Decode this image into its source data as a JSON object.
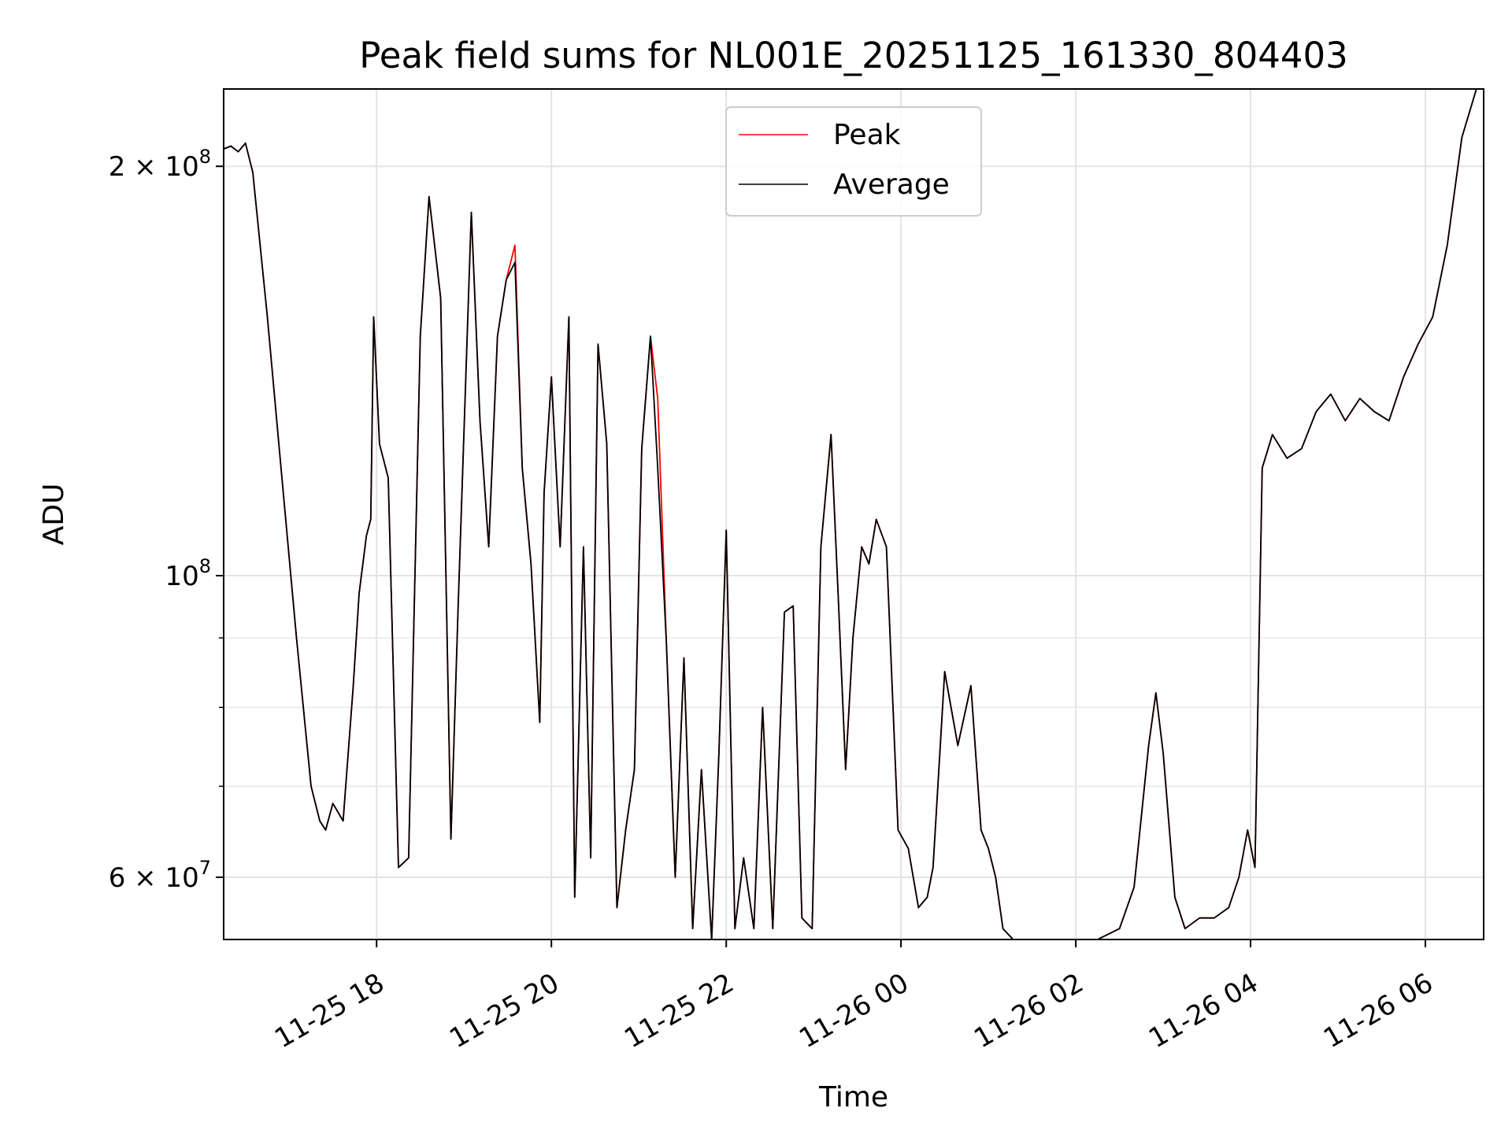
{
  "chart_data": {
    "type": "line",
    "title": "Peak field sums for NL001E_20251125_161330_804403",
    "xlabel": "Time",
    "ylabel": "ADU",
    "yscale": "log",
    "grid": true,
    "legend_position": "top-center",
    "xlim": [
      "2025-11-25 16:15",
      "2025-11-26 06:40"
    ],
    "ylim": [
      54000000,
      228000000
    ],
    "x_ticks": [
      "2025-11-25 18:00",
      "2025-11-25 20:00",
      "2025-11-25 22:00",
      "2025-11-26 00:00",
      "2025-11-26 02:00",
      "2025-11-26 04:00",
      "2025-11-26 06:00"
    ],
    "x_tick_labels": [
      "11-25 18",
      "11-25 20",
      "11-25 22",
      "11-26 00",
      "11-26 02",
      "11-26 04",
      "11-26 06"
    ],
    "y_ticks": [
      {
        "value": 60000000,
        "mantissa": "6",
        "exponent": "7"
      },
      {
        "value": 100000000,
        "mantissa": "",
        "exponent": "8"
      },
      {
        "value": 200000000,
        "mantissa": "2",
        "exponent": "8"
      }
    ],
    "y_minor_ticks": [
      70000000,
      80000000,
      90000000
    ],
    "series": [
      {
        "name": "Peak",
        "color": "#ff0000",
        "x": [
          "2025-11-25 16:15",
          "2025-11-25 16:20",
          "2025-11-25 16:25",
          "2025-11-25 16:30",
          "2025-11-25 16:35",
          "2025-11-25 16:45",
          "2025-11-25 16:55",
          "2025-11-25 17:05",
          "2025-11-25 17:15",
          "2025-11-25 17:21",
          "2025-11-25 17:25",
          "2025-11-25 17:30",
          "2025-11-25 17:37",
          "2025-11-25 17:44",
          "2025-11-25 17:48",
          "2025-11-25 17:53",
          "2025-11-25 17:56",
          "2025-11-25 17:58",
          "2025-11-25 18:02",
          "2025-11-25 18:08",
          "2025-11-25 18:15",
          "2025-11-25 18:22",
          "2025-11-25 18:30",
          "2025-11-25 18:36",
          "2025-11-25 18:44",
          "2025-11-25 18:51",
          "2025-11-25 18:56",
          "2025-11-25 19:05",
          "2025-11-25 19:11",
          "2025-11-25 19:17",
          "2025-11-25 19:23",
          "2025-11-25 19:29",
          "2025-11-25 19:35",
          "2025-11-25 19:40",
          "2025-11-25 19:46",
          "2025-11-25 19:52",
          "2025-11-25 19:55",
          "2025-11-25 20:00",
          "2025-11-25 20:06",
          "2025-11-25 20:12",
          "2025-11-25 20:16",
          "2025-11-25 20:22",
          "2025-11-25 20:27",
          "2025-11-25 20:32",
          "2025-11-25 20:38",
          "2025-11-25 20:45",
          "2025-11-25 20:51",
          "2025-11-25 20:57",
          "2025-11-25 21:02",
          "2025-11-25 21:08",
          "2025-11-25 21:13",
          "2025-11-25 21:19",
          "2025-11-25 21:25",
          "2025-11-25 21:31",
          "2025-11-25 21:37",
          "2025-11-25 21:43",
          "2025-11-25 21:50",
          "2025-11-25 21:55",
          "2025-11-25 22:00",
          "2025-11-25 22:06",
          "2025-11-25 22:12",
          "2025-11-25 22:19",
          "2025-11-25 22:25",
          "2025-11-25 22:32",
          "2025-11-25 22:40",
          "2025-11-25 22:46",
          "2025-11-25 22:52",
          "2025-11-25 22:59",
          "2025-11-25 23:05",
          "2025-11-25 23:12",
          "2025-11-25 23:17",
          "2025-11-25 23:22",
          "2025-11-25 23:27",
          "2025-11-25 23:33",
          "2025-11-25 23:38",
          "2025-11-25 23:43",
          "2025-11-25 23:50",
          "2025-11-25 23:58",
          "2025-11-26 00:05",
          "2025-11-26 00:12",
          "2025-11-26 00:18",
          "2025-11-26 00:22",
          "2025-11-26 00:30",
          "2025-11-26 00:39",
          "2025-11-26 00:48",
          "2025-11-26 00:55",
          "2025-11-26 01:00",
          "2025-11-26 01:05",
          "2025-11-26 01:10",
          "2025-11-26 01:17",
          "2025-11-26 01:25",
          "2025-11-26 01:35",
          "2025-11-26 01:45",
          "2025-11-26 02:00",
          "2025-11-26 02:15",
          "2025-11-26 02:30",
          "2025-11-26 02:40",
          "2025-11-26 02:50",
          "2025-11-26 02:55",
          "2025-11-26 03:00",
          "2025-11-26 03:08",
          "2025-11-26 03:15",
          "2025-11-26 03:25",
          "2025-11-26 03:35",
          "2025-11-26 03:45",
          "2025-11-26 03:52",
          "2025-11-26 03:58",
          "2025-11-26 04:03",
          "2025-11-26 04:08",
          "2025-11-26 04:15",
          "2025-11-26 04:25",
          "2025-11-26 04:35",
          "2025-11-26 04:45",
          "2025-11-26 04:55",
          "2025-11-26 05:05",
          "2025-11-26 05:15",
          "2025-11-26 05:25",
          "2025-11-26 05:35",
          "2025-11-26 05:45",
          "2025-11-26 05:55",
          "2025-11-26 06:05",
          "2025-11-26 06:15",
          "2025-11-26 06:25",
          "2025-11-26 06:35"
        ],
        "y": [
          206000000,
          207000000,
          205000000,
          208000000,
          198000000,
          155000000,
          118000000,
          90000000,
          70000000,
          66000000,
          65000000,
          68000000,
          66000000,
          83000000,
          97000000,
          107000000,
          110000000,
          155000000,
          125000000,
          118000000,
          61000000,
          62000000,
          150000000,
          190000000,
          160000000,
          64000000,
          95000000,
          185000000,
          130000000,
          105000000,
          150000000,
          165000000,
          175000000,
          120000000,
          102000000,
          78000000,
          115000000,
          140000000,
          105000000,
          155000000,
          58000000,
          105000000,
          62000000,
          148000000,
          125000000,
          57000000,
          65000000,
          72000000,
          124000000,
          150000000,
          135000000,
          89000000,
          60000000,
          87000000,
          55000000,
          72000000,
          54000000,
          74000000,
          108000000,
          55000000,
          62000000,
          55000000,
          80000000,
          55000000,
          94000000,
          95000000,
          56000000,
          55000000,
          105000000,
          127000000,
          96000000,
          72000000,
          90000000,
          105000000,
          102000000,
          110000000,
          105000000,
          65000000,
          63000000,
          57000000,
          58000000,
          61000000,
          85000000,
          75000000,
          83000000,
          65000000,
          63000000,
          60000000,
          55000000,
          54000000,
          54000000,
          54000000,
          54000000,
          54000000,
          54000000,
          55000000,
          59000000,
          75000000,
          82000000,
          74000000,
          58000000,
          55000000,
          56000000,
          56000000,
          57000000,
          60000000,
          65000000,
          61000000,
          120000000,
          127000000,
          122000000,
          124000000,
          132000000,
          136000000,
          130000000,
          135000000,
          132000000,
          130000000,
          140000000,
          148000000,
          155000000,
          175000000,
          210000000,
          228000000
        ]
      },
      {
        "name": "Average",
        "color": "#000000",
        "x": [
          "2025-11-25 16:15",
          "2025-11-25 16:20",
          "2025-11-25 16:25",
          "2025-11-25 16:30",
          "2025-11-25 16:35",
          "2025-11-25 16:45",
          "2025-11-25 16:55",
          "2025-11-25 17:05",
          "2025-11-25 17:15",
          "2025-11-25 17:21",
          "2025-11-25 17:25",
          "2025-11-25 17:30",
          "2025-11-25 17:37",
          "2025-11-25 17:44",
          "2025-11-25 17:48",
          "2025-11-25 17:53",
          "2025-11-25 17:56",
          "2025-11-25 17:58",
          "2025-11-25 18:02",
          "2025-11-25 18:08",
          "2025-11-25 18:15",
          "2025-11-25 18:22",
          "2025-11-25 18:30",
          "2025-11-25 18:36",
          "2025-11-25 18:44",
          "2025-11-25 18:51",
          "2025-11-25 18:56",
          "2025-11-25 19:05",
          "2025-11-25 19:11",
          "2025-11-25 19:17",
          "2025-11-25 19:23",
          "2025-11-25 19:29",
          "2025-11-25 19:35",
          "2025-11-25 19:40",
          "2025-11-25 19:46",
          "2025-11-25 19:52",
          "2025-11-25 19:55",
          "2025-11-25 20:00",
          "2025-11-25 20:06",
          "2025-11-25 20:12",
          "2025-11-25 20:16",
          "2025-11-25 20:22",
          "2025-11-25 20:27",
          "2025-11-25 20:32",
          "2025-11-25 20:38",
          "2025-11-25 20:45",
          "2025-11-25 20:51",
          "2025-11-25 20:57",
          "2025-11-25 21:02",
          "2025-11-25 21:08",
          "2025-11-25 21:13",
          "2025-11-25 21:19",
          "2025-11-25 21:25",
          "2025-11-25 21:31",
          "2025-11-25 21:37",
          "2025-11-25 21:43",
          "2025-11-25 21:50",
          "2025-11-25 21:55",
          "2025-11-25 22:00",
          "2025-11-25 22:06",
          "2025-11-25 22:12",
          "2025-11-25 22:19",
          "2025-11-25 22:25",
          "2025-11-25 22:32",
          "2025-11-25 22:40",
          "2025-11-25 22:46",
          "2025-11-25 22:52",
          "2025-11-25 22:59",
          "2025-11-25 23:05",
          "2025-11-25 23:12",
          "2025-11-25 23:17",
          "2025-11-25 23:22",
          "2025-11-25 23:27",
          "2025-11-25 23:33",
          "2025-11-25 23:38",
          "2025-11-25 23:43",
          "2025-11-25 23:50",
          "2025-11-25 23:58",
          "2025-11-26 00:05",
          "2025-11-26 00:12",
          "2025-11-26 00:18",
          "2025-11-26 00:22",
          "2025-11-26 00:30",
          "2025-11-26 00:39",
          "2025-11-26 00:48",
          "2025-11-26 00:55",
          "2025-11-26 01:00",
          "2025-11-26 01:05",
          "2025-11-26 01:10",
          "2025-11-26 01:17",
          "2025-11-26 01:25",
          "2025-11-26 01:35",
          "2025-11-26 01:45",
          "2025-11-26 02:00",
          "2025-11-26 02:15",
          "2025-11-26 02:30",
          "2025-11-26 02:40",
          "2025-11-26 02:50",
          "2025-11-26 02:55",
          "2025-11-26 03:00",
          "2025-11-26 03:08",
          "2025-11-26 03:15",
          "2025-11-26 03:25",
          "2025-11-26 03:35",
          "2025-11-26 03:45",
          "2025-11-26 03:52",
          "2025-11-26 03:58",
          "2025-11-26 04:03",
          "2025-11-26 04:08",
          "2025-11-26 04:15",
          "2025-11-26 04:25",
          "2025-11-26 04:35",
          "2025-11-26 04:45",
          "2025-11-26 04:55",
          "2025-11-26 05:05",
          "2025-11-26 05:15",
          "2025-11-26 05:25",
          "2025-11-26 05:35",
          "2025-11-26 05:45",
          "2025-11-26 05:55",
          "2025-11-26 06:05",
          "2025-11-26 06:15",
          "2025-11-26 06:25",
          "2025-11-26 06:35"
        ],
        "y": [
          206000000,
          207000000,
          205000000,
          208000000,
          198000000,
          155000000,
          118000000,
          90000000,
          70000000,
          66000000,
          65000000,
          68000000,
          66000000,
          83000000,
          97000000,
          107000000,
          110000000,
          155000000,
          125000000,
          118000000,
          61000000,
          62000000,
          150000000,
          190000000,
          160000000,
          64000000,
          95000000,
          185000000,
          130000000,
          105000000,
          150000000,
          165000000,
          170000000,
          120000000,
          102000000,
          78000000,
          115000000,
          140000000,
          105000000,
          155000000,
          58000000,
          105000000,
          62000000,
          148000000,
          125000000,
          57000000,
          65000000,
          72000000,
          124000000,
          150000000,
          120000000,
          89000000,
          60000000,
          87000000,
          55000000,
          72000000,
          54000000,
          74000000,
          108000000,
          55000000,
          62000000,
          55000000,
          80000000,
          55000000,
          94000000,
          95000000,
          56000000,
          55000000,
          105000000,
          127000000,
          96000000,
          72000000,
          90000000,
          105000000,
          102000000,
          110000000,
          105000000,
          65000000,
          63000000,
          57000000,
          58000000,
          61000000,
          85000000,
          75000000,
          83000000,
          65000000,
          63000000,
          60000000,
          55000000,
          54000000,
          54000000,
          54000000,
          54000000,
          54000000,
          54000000,
          55000000,
          59000000,
          75000000,
          82000000,
          74000000,
          58000000,
          55000000,
          56000000,
          56000000,
          57000000,
          60000000,
          65000000,
          61000000,
          120000000,
          127000000,
          122000000,
          124000000,
          132000000,
          136000000,
          130000000,
          135000000,
          132000000,
          130000000,
          140000000,
          148000000,
          155000000,
          175000000,
          210000000,
          228000000
        ]
      }
    ]
  }
}
